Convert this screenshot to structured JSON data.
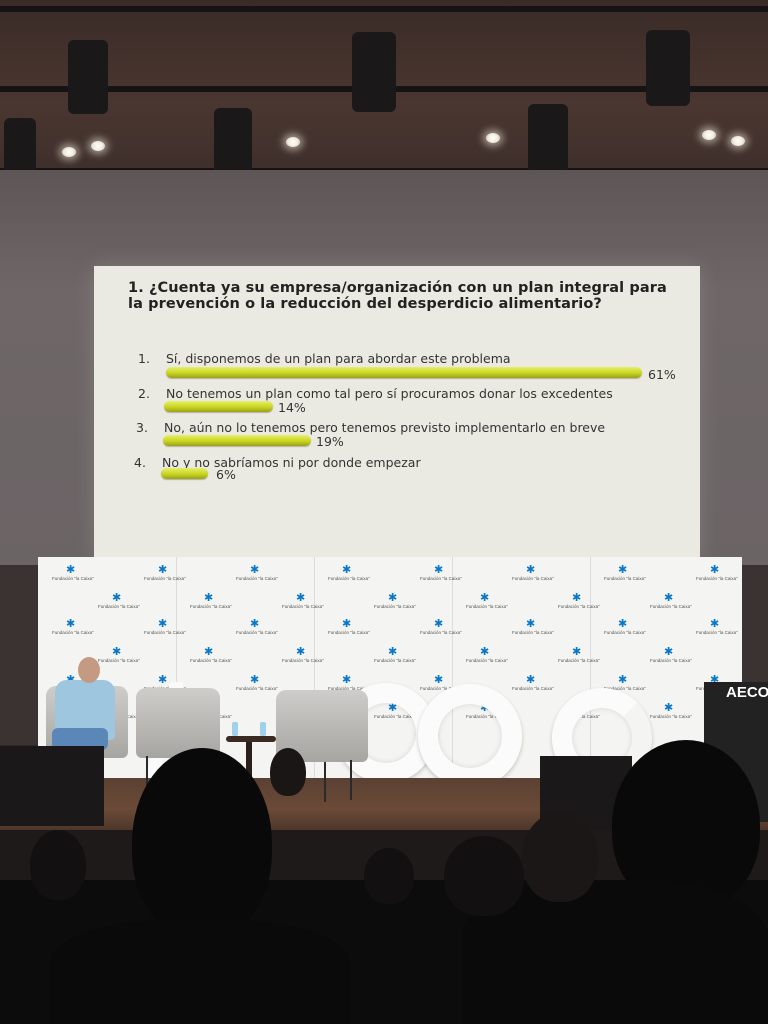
{
  "slide": {
    "question": "1.  ¿Cuenta ya su empresa/organización con un plan integral para la prevención o la reducción del desperdicio alimentario?",
    "bar_color": "#c9d421",
    "options": [
      {
        "num": "1.",
        "label": "Sí, disponemos de un plan para abordar este problema",
        "percent_label": "61%",
        "value": 61
      },
      {
        "num": "2.",
        "label": "No tenemos un plan como tal pero sí procuramos donar los excedentes",
        "percent_label": "14%",
        "value": 14
      },
      {
        "num": "3.",
        "label": "No, aún no lo tenemos pero tenemos previsto implementarlo en breve",
        "percent_label": "19%",
        "value": 19
      },
      {
        "num": "4.",
        "label": "No y no sabríamos ni por donde empezar",
        "percent_label": "6%",
        "value": 6
      }
    ]
  },
  "backdrop": {
    "logo_text": "Fundación \"la Caixa\"",
    "logo_color": "#0a78c8"
  },
  "lectern": {
    "sign": "AECO"
  }
}
